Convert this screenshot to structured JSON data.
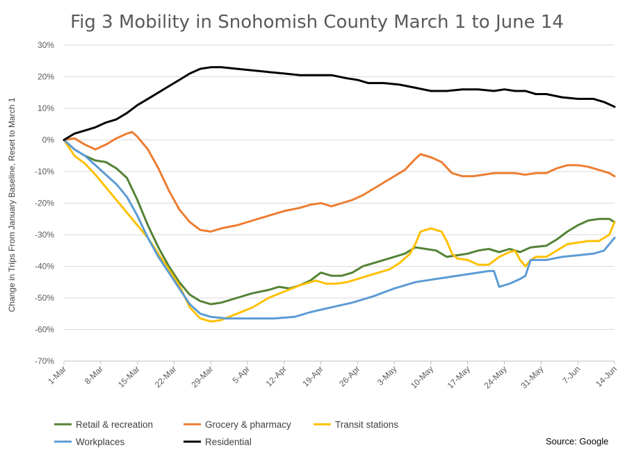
{
  "chart_data": {
    "type": "line",
    "title": "Fig 3 Mobility in Snohomish County March 1 to June 14",
    "xlabel": "",
    "ylabel": "Change in Trips From January Baseline, Reset to March 1",
    "source": "Source: Google",
    "x_start": "1-Mar",
    "x_end": "14-Jun",
    "x_ticks": [
      "1-Mar",
      "8-Mar",
      "15-Mar",
      "22-Mar",
      "29-Mar",
      "5-Apr",
      "12-Apr",
      "19-Apr",
      "26-Apr",
      "3-May",
      "10-May",
      "17-May",
      "24-May",
      "31-May",
      "7-Jun",
      "14-Jun"
    ],
    "y_ticks": [
      "30%",
      "20%",
      "10%",
      "0%",
      "-10%",
      "-20%",
      "-30%",
      "-40%",
      "-50%",
      "-60%",
      "-70%"
    ],
    "ylim": [
      -70,
      30
    ],
    "grid": true,
    "legend_position": "bottom",
    "series": [
      {
        "name": "Retail & recreation",
        "color": "#548235",
        "x": [
          "1-Mar",
          "3-Mar",
          "5-Mar",
          "7-Mar",
          "9-Mar",
          "11-Mar",
          "13-Mar",
          "15-Mar",
          "17-Mar",
          "19-Mar",
          "21-Mar",
          "23-Mar",
          "25-Mar",
          "27-Mar",
          "29-Mar",
          "31-Mar",
          "3-Apr",
          "6-Apr",
          "9-Apr",
          "11-Apr",
          "13-Apr",
          "15-Apr",
          "17-Apr",
          "19-Apr",
          "21-Apr",
          "23-Apr",
          "25-Apr",
          "27-Apr",
          "29-Apr",
          "1-May",
          "3-May",
          "5-May",
          "7-May",
          "9-May",
          "11-May",
          "13-May",
          "15-May",
          "17-May",
          "19-May",
          "21-May",
          "23-May",
          "25-May",
          "27-May",
          "29-May",
          "1-Jun",
          "3-Jun",
          "5-Jun",
          "7-Jun",
          "9-Jun",
          "11-Jun",
          "13-Jun",
          "14-Jun"
        ],
        "values": [
          0,
          -3,
          -5,
          -6.5,
          -7,
          -9,
          -12,
          -19,
          -27,
          -34,
          -40,
          -45,
          -49,
          -51,
          -52,
          -51.5,
          -50,
          -48.5,
          -47.5,
          -46.5,
          -47,
          -46,
          -44.5,
          -42,
          -43,
          -43,
          -42,
          -40,
          -39,
          -38,
          -37,
          -36,
          -34,
          -34.5,
          -35,
          -37,
          -36.5,
          -36,
          -35,
          -34.5,
          -35.5,
          -34.5,
          -35.5,
          -34,
          -33.5,
          -31.5,
          -29,
          -27,
          -25.5,
          -25,
          -25,
          -26
        ]
      },
      {
        "name": "Grocery & pharmacy",
        "color": "#ed7d31",
        "x": [
          "1-Mar",
          "3-Mar",
          "5-Mar",
          "7-Mar",
          "9-Mar",
          "11-Mar",
          "13-Mar",
          "14-Mar",
          "15-Mar",
          "17-Mar",
          "19-Mar",
          "21-Mar",
          "23-Mar",
          "25-Mar",
          "27-Mar",
          "29-Mar",
          "31-Mar",
          "3-Apr",
          "6-Apr",
          "9-Apr",
          "12-Apr",
          "15-Apr",
          "17-Apr",
          "19-Apr",
          "21-Apr",
          "23-Apr",
          "25-Apr",
          "27-Apr",
          "29-Apr",
          "1-May",
          "3-May",
          "5-May",
          "7-May",
          "8-May",
          "10-May",
          "12-May",
          "14-May",
          "16-May",
          "18-May",
          "20-May",
          "22-May",
          "24-May",
          "26-May",
          "28-May",
          "30-May",
          "1-Jun",
          "3-Jun",
          "5-Jun",
          "7-Jun",
          "9-Jun",
          "11-Jun",
          "13-Jun",
          "14-Jun"
        ],
        "values": [
          0,
          0.5,
          -1.5,
          -3,
          -1.5,
          0.5,
          2,
          2.5,
          1,
          -3,
          -9,
          -16,
          -22,
          -26,
          -28.5,
          -29,
          -28,
          -27,
          -25.5,
          -24,
          -22.5,
          -21.5,
          -20.5,
          -20,
          -21,
          -20,
          -19,
          -17.5,
          -15.5,
          -13.5,
          -11.5,
          -9.5,
          -6,
          -4.5,
          -5.5,
          -7,
          -10.5,
          -11.5,
          -11.5,
          -11,
          -10.5,
          -10.5,
          -10.5,
          -11,
          -10.5,
          -10.5,
          -9,
          -8,
          -8,
          -8.5,
          -9.5,
          -10.5,
          -11.5
        ]
      },
      {
        "name": "Transit stations",
        "color": "#ffc000",
        "x": [
          "1-Mar",
          "3-Mar",
          "5-Mar",
          "7-Mar",
          "9-Mar",
          "11-Mar",
          "13-Mar",
          "15-Mar",
          "17-Mar",
          "19-Mar",
          "21-Mar",
          "23-Mar",
          "25-Mar",
          "27-Mar",
          "29-Mar",
          "31-Mar",
          "3-Apr",
          "6-Apr",
          "9-Apr",
          "12-Apr",
          "15-Apr",
          "18-Apr",
          "20-Apr",
          "22-Apr",
          "24-Apr",
          "26-Apr",
          "28-Apr",
          "30-Apr",
          "2-May",
          "4-May",
          "6-May",
          "7-May",
          "8-May",
          "9-May",
          "10-May",
          "11-May",
          "12-May",
          "13-May",
          "14-May",
          "15-May",
          "17-May",
          "19-May",
          "21-May",
          "23-May",
          "25-May",
          "26-May",
          "27-May",
          "28-May",
          "29-May",
          "30-May",
          "1-Jun",
          "3-Jun",
          "5-Jun",
          "7-Jun",
          "9-Jun",
          "11-Jun",
          "13-Jun",
          "14-Jun"
        ],
        "values": [
          0,
          -5,
          -7.5,
          -11,
          -15,
          -19,
          -23,
          -27,
          -31,
          -36,
          -41,
          -46,
          -53,
          -56.5,
          -57.5,
          -57,
          -55,
          -53,
          -50,
          -48,
          -46,
          -44.5,
          -45.5,
          -45.5,
          -45,
          -44,
          -43,
          -42,
          -41,
          -39,
          -36,
          -33,
          -29,
          -28.5,
          -28,
          -28.5,
          -29,
          -32,
          -36,
          -37.5,
          -38,
          -39.5,
          -39.5,
          -37,
          -35.5,
          -35,
          -38,
          -40,
          -38,
          -37,
          -37,
          -35,
          -33,
          -32.5,
          -32,
          -32,
          -30,
          -26
        ]
      },
      {
        "name": "Workplaces",
        "color": "#5b9bd5",
        "x": [
          "1-Mar",
          "3-Mar",
          "5-Mar",
          "7-Mar",
          "9-Mar",
          "11-Mar",
          "13-Mar",
          "15-Mar",
          "17-Mar",
          "19-Mar",
          "21-Mar",
          "23-Mar",
          "25-Mar",
          "27-Mar",
          "29-Mar",
          "1-Apr",
          "5-Apr",
          "10-Apr",
          "14-Apr",
          "17-Apr",
          "21-Apr",
          "25-Apr",
          "29-Apr",
          "3-May",
          "7-May",
          "11-May",
          "15-May",
          "19-May",
          "21-May",
          "22-May",
          "23-May",
          "25-May",
          "27-May",
          "28-May",
          "29-May",
          "30-May",
          "1-Jun",
          "4-Jun",
          "7-Jun",
          "10-Jun",
          "12-Jun",
          "13-Jun",
          "14-Jun"
        ],
        "values": [
          0,
          -3,
          -5,
          -8,
          -11,
          -14,
          -18,
          -24,
          -31,
          -37,
          -42,
          -47,
          -52,
          -55,
          -56,
          -56.5,
          -56.5,
          -56.5,
          -56,
          -54.5,
          -53,
          -51.5,
          -49.5,
          -47,
          -45,
          -44,
          -43,
          -42,
          -41.5,
          -41.5,
          -46.5,
          -45.5,
          -44,
          -43,
          -38,
          -38,
          -38,
          -37,
          -36.5,
          -36,
          -35,
          -33,
          -31
        ]
      },
      {
        "name": "Residential",
        "color": "#000000",
        "x": [
          "1-Mar",
          "3-Mar",
          "5-Mar",
          "7-Mar",
          "9-Mar",
          "11-Mar",
          "13-Mar",
          "15-Mar",
          "17-Mar",
          "19-Mar",
          "21-Mar",
          "23-Mar",
          "25-Mar",
          "27-Mar",
          "29-Mar",
          "31-Mar",
          "3-Apr",
          "6-Apr",
          "9-Apr",
          "12-Apr",
          "15-Apr",
          "18-Apr",
          "21-Apr",
          "24-Apr",
          "26-Apr",
          "28-Apr",
          "1-May",
          "4-May",
          "7-May",
          "10-May",
          "13-May",
          "16-May",
          "19-May",
          "22-May",
          "24-May",
          "26-May",
          "28-May",
          "30-May",
          "1-Jun",
          "4-Jun",
          "7-Jun",
          "10-Jun",
          "12-Jun",
          "14-Jun"
        ],
        "values": [
          0,
          2,
          3,
          4,
          5.5,
          6.5,
          8.5,
          11,
          13,
          15,
          17,
          19,
          21,
          22.5,
          23,
          23,
          22.5,
          22,
          21.5,
          21,
          20.5,
          20.5,
          20.5,
          19.5,
          19,
          18,
          18,
          17.5,
          16.5,
          15.5,
          15.5,
          16,
          16,
          15.5,
          16,
          15.5,
          15.5,
          14.5,
          14.5,
          13.5,
          13,
          13,
          12,
          10.5
        ]
      }
    ]
  }
}
